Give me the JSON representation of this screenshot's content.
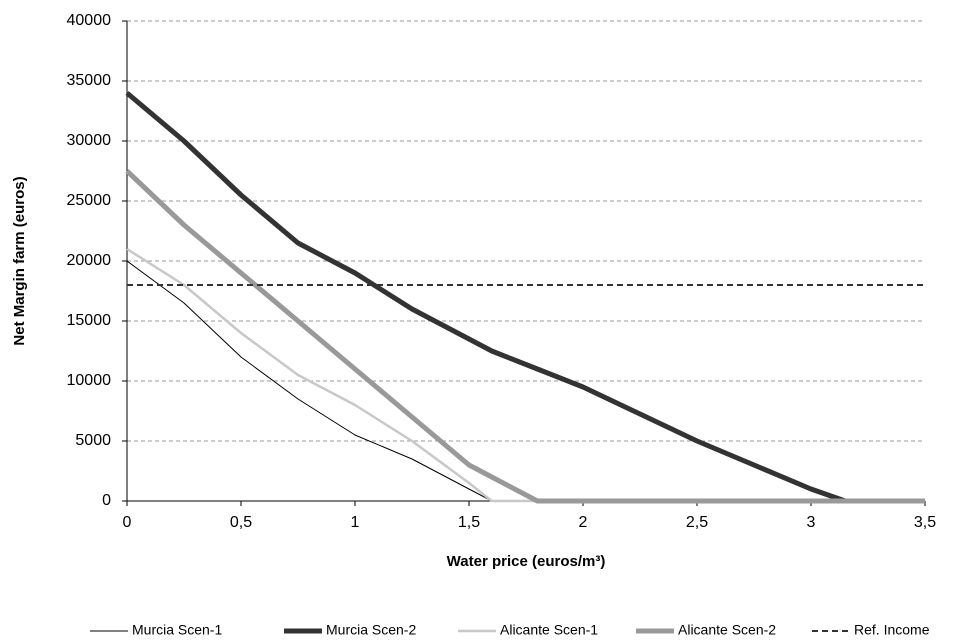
{
  "chart_data": {
    "type": "line",
    "xlabel": "Water price (euros/m³)",
    "ylabel": "Net Margin farm (euros)",
    "x": [
      0,
      0.25,
      0.5,
      0.75,
      1,
      1.25,
      1.5,
      1.6,
      1.8,
      2,
      2.5,
      3,
      3.15,
      3.5
    ],
    "series": [
      {
        "name": "Murcia Scen-1",
        "color": "#000000",
        "width": 1,
        "values": [
          20000,
          16500,
          12000,
          8500,
          5500,
          3500,
          1000,
          0,
          0,
          0,
          0,
          0,
          0,
          0
        ]
      },
      {
        "name": "Murcia Scen-2",
        "color": "#333333",
        "width": 5,
        "values": [
          34000,
          30000,
          25500,
          21500,
          19000,
          16000,
          13500,
          12500,
          11000,
          9500,
          5000,
          1000,
          0,
          0
        ]
      },
      {
        "name": "Alicante Scen-1",
        "color": "#c8c8c8",
        "width": 2.5,
        "values": [
          21000,
          18000,
          14000,
          10500,
          8000,
          5000,
          1500,
          0,
          0,
          0,
          0,
          0,
          0,
          0
        ]
      },
      {
        "name": "Alicante Scen-2",
        "color": "#999999",
        "width": 5,
        "values": [
          27500,
          23000,
          19000,
          15000,
          11000,
          7000,
          3000,
          2000,
          0,
          0,
          0,
          0,
          0,
          0
        ]
      },
      {
        "name": "Ref. Income",
        "color": "#333333",
        "width": 2,
        "dash": true,
        "values": [
          18000,
          18000,
          18000,
          18000,
          18000,
          18000,
          18000,
          18000,
          18000,
          18000,
          18000,
          18000,
          18000,
          18000
        ]
      }
    ],
    "xlim": [
      0,
      3.5
    ],
    "xticks": [
      0,
      {
        "value": 0.5,
        "label": "0,5"
      },
      1,
      {
        "value": 1.5,
        "label": "1,5"
      },
      2,
      {
        "value": 2.5,
        "label": "2,5"
      },
      3,
      {
        "value": 3.5,
        "label": "3,5"
      }
    ],
    "ylim": [
      0,
      40000
    ],
    "yticks": [
      0,
      5000,
      10000,
      15000,
      20000,
      25000,
      30000,
      35000,
      40000
    ],
    "grid": true,
    "legend": "bottom"
  }
}
